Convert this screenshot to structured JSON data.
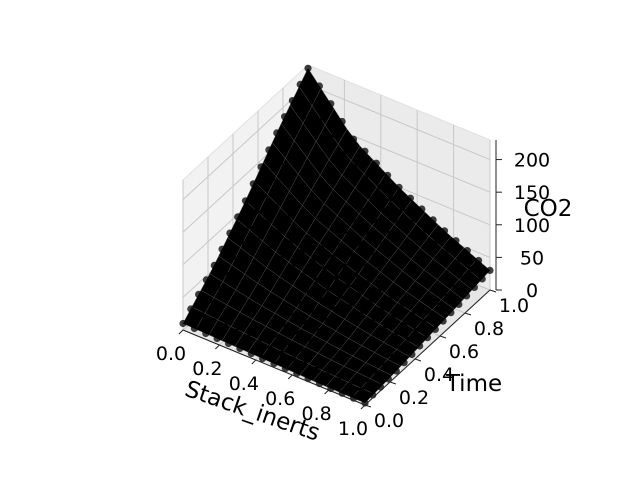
{
  "chart_data": {
    "type": "surface3d",
    "title": "",
    "xlabel": "Stack_inerts",
    "ylabel": "Time",
    "zlabel": "CO2",
    "xlim": [
      0,
      1
    ],
    "ylim": [
      0,
      1
    ],
    "zlim": [
      0,
      230
    ],
    "x_ticks": [
      "0.0",
      "0.2",
      "0.4",
      "0.6",
      "0.8",
      "1.0"
    ],
    "y_ticks": [
      "0.0",
      "0.2",
      "0.4",
      "0.6",
      "0.8",
      "1.0"
    ],
    "z_ticks": [
      "0",
      "50",
      "100",
      "150",
      "200"
    ],
    "grid": true,
    "surface_color": "#000000",
    "marker_color": "#000000",
    "grid_x": [
      0.0,
      0.25,
      0.5,
      0.75,
      1.0
    ],
    "grid_y": [
      0.0,
      0.25,
      0.5,
      0.75,
      1.0
    ],
    "z_values": [
      [
        10,
        55,
        110,
        170,
        225
      ],
      [
        8,
        38,
        75,
        110,
        145
      ],
      [
        6,
        25,
        50,
        75,
        100
      ],
      [
        4,
        15,
        30,
        45,
        62
      ],
      [
        3,
        8,
        15,
        22,
        30
      ]
    ]
  }
}
